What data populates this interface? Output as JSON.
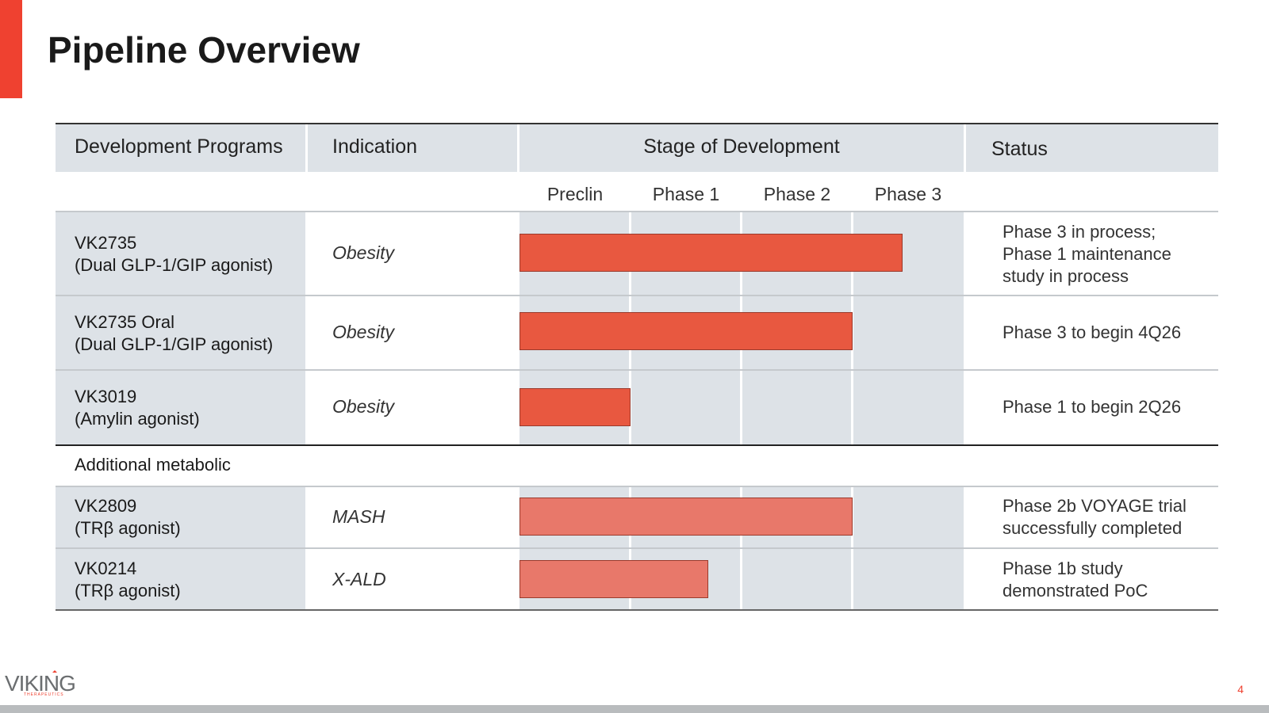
{
  "page": {
    "title": "Pipeline Overview",
    "page_number": "4",
    "accent_color": "#ef4130"
  },
  "table": {
    "headers": {
      "programs": "Development Programs",
      "indication": "Indication",
      "stage": "Stage of Development",
      "status": "Status"
    },
    "phases": [
      "Preclin",
      "Phase 1",
      "Phase 2",
      "Phase 3"
    ],
    "rows": [
      {
        "name": "VK2735",
        "desc": "(Dual GLP-1/GIP agonist)",
        "indication": "Obesity",
        "status": "Phase 3 in process; Phase 1 maintenance study in process",
        "progress_phases": 3.45,
        "color": "#e85840"
      },
      {
        "name": "VK2735 Oral",
        "desc": "(Dual GLP-1/GIP agonist)",
        "indication": "Obesity",
        "status": "Phase 3 to begin 4Q26",
        "progress_phases": 3.0,
        "color": "#e85840"
      },
      {
        "name": "VK3019",
        "desc": "(Amylin agonist)",
        "indication": "Obesity",
        "status": "Phase 1 to begin 2Q26",
        "progress_phases": 1.0,
        "color": "#e85840"
      },
      {
        "name": "VK2809",
        "desc": "(TRβ agonist)",
        "indication": "MASH",
        "status": "Phase 2b VOYAGE trial successfully completed",
        "progress_phases": 3.0,
        "color": "#e8786a"
      },
      {
        "name": "VK0214",
        "desc": "(TRβ agonist)",
        "indication": "X-ALD",
        "status": "Phase 1b study demonstrated PoC",
        "progress_phases": 1.7,
        "color": "#e8786a"
      }
    ],
    "section_label": "Additional metabolic"
  },
  "logo": {
    "text": "VIKING",
    "sub": "THERAPEUTICS"
  }
}
